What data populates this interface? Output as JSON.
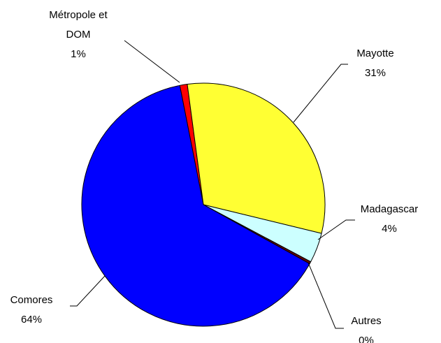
{
  "chart_data": {
    "type": "pie",
    "categories": [
      "Métropole et DOM",
      "Mayotte",
      "Madagascar",
      "Autres",
      "Comores"
    ],
    "values": [
      1,
      31,
      4,
      0.3,
      64
    ],
    "value_labels": [
      "1%",
      "31%",
      "4%",
      "0%",
      "64%"
    ],
    "colors": [
      "#ff0000",
      "#ffff33",
      "#ccffff",
      "#660000",
      "#0000ff"
    ]
  }
}
